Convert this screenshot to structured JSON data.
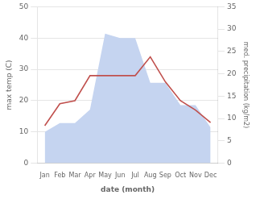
{
  "chart_data": {
    "type": "line",
    "categories": [
      "Jan",
      "Feb",
      "Mar",
      "Apr",
      "May",
      "Jun",
      "Jul",
      "Aug",
      "Sep",
      "Oct",
      "Nov",
      "Dec"
    ],
    "series": [
      {
        "type": "area",
        "color": "#c5d4f0",
        "axis": "y2",
        "values": [
          7,
          9,
          9,
          12,
          29,
          28,
          28,
          18,
          18,
          13,
          13,
          8
        ]
      },
      {
        "type": "line",
        "color": "#c0504d",
        "values": [
          12,
          19,
          20,
          28,
          28,
          28,
          28,
          34,
          26,
          20,
          17,
          13
        ]
      }
    ],
    "xlabel": "date (month)",
    "ylabel": "max temp (C)",
    "y2label": "med. precipitation (kg/m2)",
    "ylim": [
      0,
      50
    ],
    "yticks": [
      0,
      10,
      20,
      30,
      40,
      50
    ],
    "y2lim": [
      0,
      35
    ],
    "y2ticks": [
      0,
      5,
      10,
      15,
      20,
      25,
      30,
      35
    ],
    "grid": true
  }
}
